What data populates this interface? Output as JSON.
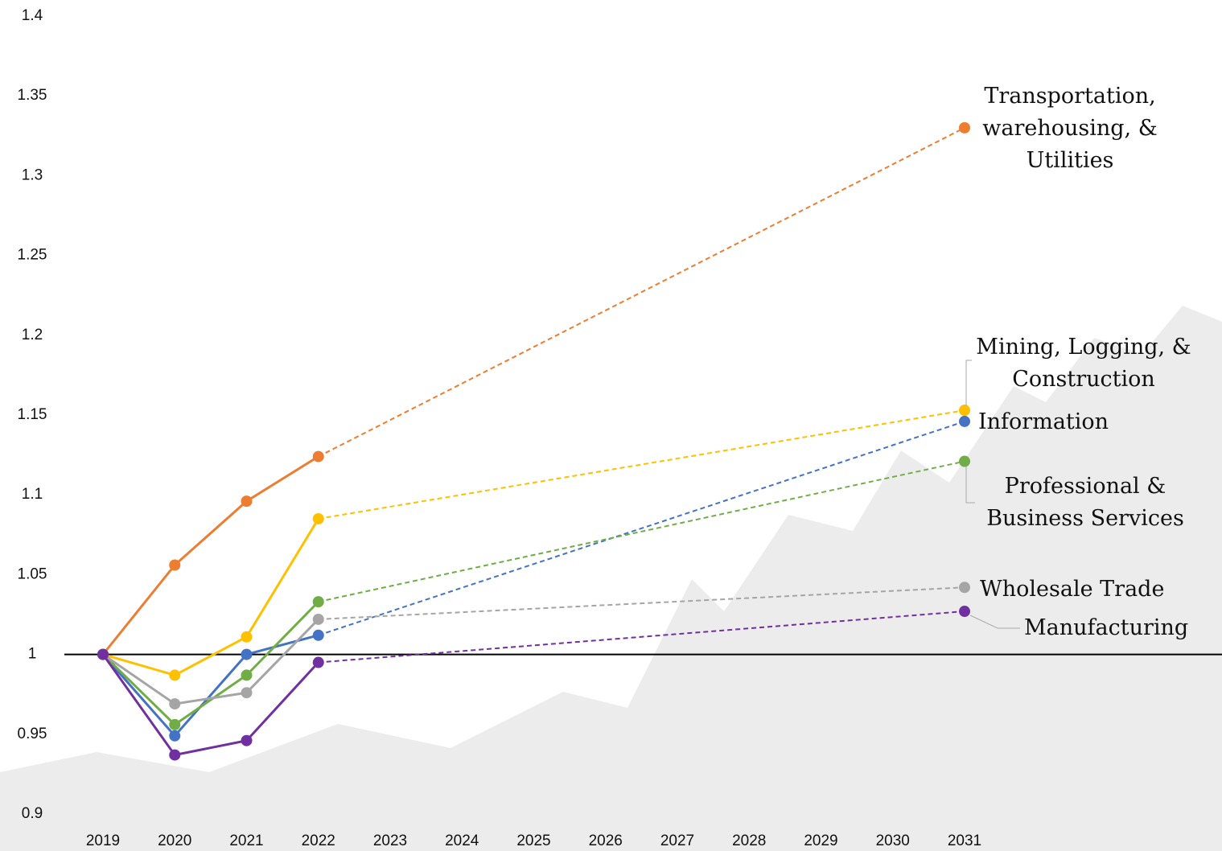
{
  "chart_data": {
    "type": "line",
    "x": [
      2019,
      2020,
      2021,
      2022,
      2031
    ],
    "xlim": [
      2018.5,
      2031.5
    ],
    "xticks": [
      2019,
      2020,
      2021,
      2022,
      2023,
      2024,
      2025,
      2026,
      2027,
      2028,
      2029,
      2030,
      2031
    ],
    "ylim": [
      0.9,
      1.4
    ],
    "yticks": [
      0.9,
      0.95,
      1,
      1.05,
      1.1,
      1.15,
      1.2,
      1.25,
      1.3,
      1.35,
      1.4
    ],
    "x_axis_at": 1,
    "dashed_from_x": 2022,
    "grid": false,
    "series": [
      {
        "name": "Transportation,\nwarehousing, &\nUtilities",
        "color": "#ed7d31",
        "values": [
          1.0,
          1.056,
          1.096,
          1.124,
          1.33
        ]
      },
      {
        "name": "Mining, Logging, &\nConstruction",
        "color": "#ffc000",
        "values": [
          1.0,
          0.987,
          1.011,
          1.085,
          1.153
        ]
      },
      {
        "name": "Information",
        "color": "#4472c4",
        "values": [
          1.0,
          0.949,
          1.0,
          1.012,
          1.146
        ]
      },
      {
        "name": "Professional &\nBusiness Services",
        "color": "#70ad47",
        "values": [
          1.0,
          0.956,
          0.987,
          1.033,
          1.121
        ]
      },
      {
        "name": "Wholesale Trade",
        "color": "#a5a5a5",
        "values": [
          1.0,
          0.969,
          0.976,
          1.022,
          1.042
        ]
      },
      {
        "name": "Manufacturing",
        "color": "#7030a0",
        "values": [
          1.0,
          0.937,
          0.946,
          0.995,
          1.027
        ]
      }
    ]
  }
}
